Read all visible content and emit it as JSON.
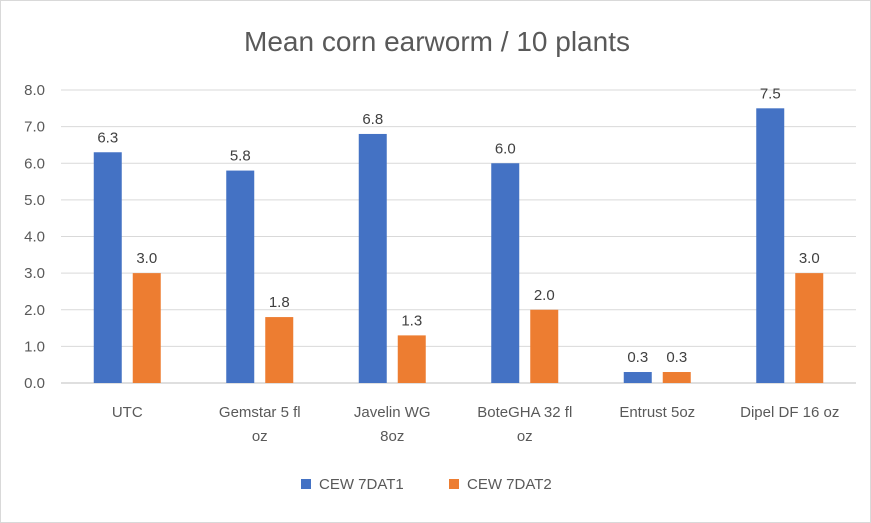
{
  "chart_data": {
    "type": "bar",
    "title": "Mean corn earworm / 10 plants",
    "categories": [
      [
        "UTC"
      ],
      [
        "Gemstar 5 fl",
        "oz"
      ],
      [
        "Javelin WG",
        "8oz"
      ],
      [
        "BoteGHA 32 fl",
        "oz"
      ],
      [
        "Entrust 5oz"
      ],
      [
        "Dipel DF 16 oz"
      ]
    ],
    "series": [
      {
        "name": "CEW 7DAT1",
        "color": "#4472c4",
        "values": [
          6.3,
          5.8,
          6.8,
          6.0,
          0.3,
          7.5
        ],
        "labels": [
          "6.3",
          "5.8",
          "6.8",
          "6.0",
          "0.3",
          "7.5"
        ]
      },
      {
        "name": "CEW 7DAT2",
        "color": "#ed7d31",
        "values": [
          3.0,
          1.8,
          1.3,
          2.0,
          0.3,
          3.0
        ],
        "labels": [
          "3.0",
          "1.8",
          "1.3",
          "2.0",
          "0.3",
          "3.0"
        ]
      }
    ],
    "ylim": [
      0,
      8
    ],
    "yticks": [
      "0.0",
      "1.0",
      "2.0",
      "3.0",
      "4.0",
      "5.0",
      "6.0",
      "7.0",
      "8.0"
    ],
    "grid": true,
    "legend_position": "bottom"
  }
}
